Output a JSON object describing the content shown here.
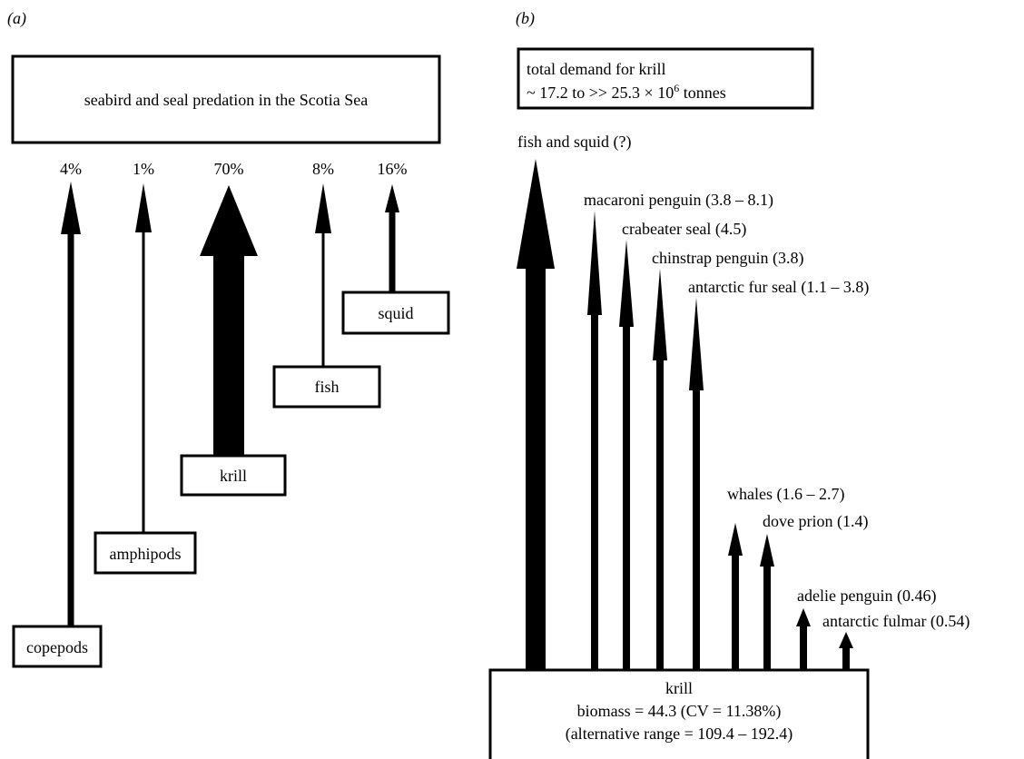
{
  "colors": {
    "ink": "#000000",
    "paper": "#ffffff"
  },
  "panel_a": {
    "label": "(a)",
    "title_box": "seabird and seal predation in the Scotia Sea",
    "percent_unit": "%",
    "flows": [
      {
        "percent": "4",
        "share": 0.04,
        "prey": "copepods"
      },
      {
        "percent": "1",
        "share": 0.01,
        "prey": "amphipods"
      },
      {
        "percent": "70",
        "share": 0.7,
        "prey": "krill"
      },
      {
        "percent": "8",
        "share": 0.08,
        "prey": "fish"
      },
      {
        "percent": "16",
        "share": 0.16,
        "prey": "squid"
      }
    ]
  },
  "panel_b": {
    "label": "(b)",
    "demand_box": {
      "line1": "total demand for krill",
      "line2_prefix": "~ 17.2 to >> 25.3 × 10",
      "line2_exponent": "6",
      "line2_suffix": " tonnes"
    },
    "consumers": [
      {
        "label": "fish and squid (?)"
      },
      {
        "label": "macaroni penguin (3.8 – 8.1)"
      },
      {
        "label": "crabeater seal (4.5)"
      },
      {
        "label": "chinstrap penguin (3.8)"
      },
      {
        "label": "antarctic fur seal (1.1 – 3.8)"
      },
      {
        "label": "whales (1.6 – 2.7)"
      },
      {
        "label": "dove prion (1.4)"
      },
      {
        "label": "adelie penguin (0.46)"
      },
      {
        "label": "antarctic fulmar (0.54)"
      }
    ],
    "source_box": {
      "line1": "krill",
      "line2": "biomass = 44.3 (CV = 11.38%)",
      "line3": "(alternative range = 109.4 – 192.4)"
    }
  }
}
